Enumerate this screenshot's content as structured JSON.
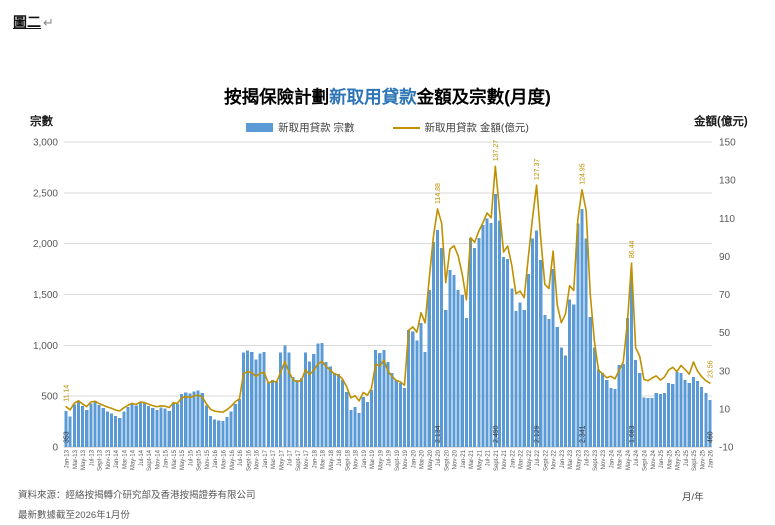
{
  "figure": {
    "label": "圖二",
    "paragraph_mark": "↵"
  },
  "title": {
    "prefix": "按揭保險計劃",
    "highlight": "新取用貸款",
    "suffix": "金額及宗數(月度)",
    "highlight_color": "#2E75B6"
  },
  "legend": [
    {
      "label": "新取用貸款 宗數",
      "type": "bar",
      "color": "#5B9BD5"
    },
    {
      "label": "新取用貸款 金額(億元)",
      "type": "line",
      "color": "#BF9000"
    }
  ],
  "axes": {
    "left_title": "宗數",
    "right_title": "金額(億元)",
    "x_title": "月/年",
    "left_tick_labels": [
      "0",
      "500",
      "1,000",
      "1,500",
      "2,000",
      "2,500",
      "3,000"
    ],
    "right_tick_labels": [
      "-10",
      "10",
      "30",
      "50",
      "70",
      "90",
      "110",
      "130",
      "150"
    ]
  },
  "source": {
    "line1": "資料來源：經絡按揭轉介研究部及香港按揭證券有限公司",
    "line2": "最新數據截至2026年1月份"
  },
  "chart_data": {
    "type": "bar+line",
    "title": "按揭保險計劃新取用貸款金額及宗數(月度)",
    "x_range": "Jan-13 to Jan-26 (monthly, 157 points)",
    "grid": true,
    "legend_position": "top",
    "left_axis": {
      "min": 0,
      "max": 3000,
      "step": 500
    },
    "right_axis": {
      "min": -10,
      "max": 150,
      "step": 20
    },
    "x_tick_labels": [
      "Jan-13",
      "Mar-13",
      "May-13",
      "Jul-13",
      "Sept-13",
      "Nov-13",
      "Jan-14",
      "Mar-14",
      "May-14",
      "Jul-14",
      "Sept-14",
      "Nov-14",
      "Jan-15",
      "Mar-15",
      "May-15",
      "Jul-15",
      "Sept-15",
      "Nov-15",
      "Jan-16",
      "Mar-16",
      "May-16",
      "Jul-16",
      "Sept-16",
      "Nov-16",
      "Jan-17",
      "Mar-17",
      "May-17",
      "Jul-17",
      "Sept-17",
      "Nov-17",
      "Jan-18",
      "Mar-18",
      "May-18",
      "Jul-18",
      "Sept-18",
      "Nov-18",
      "Jan-19",
      "Mar-19",
      "May-19",
      "Jul-19",
      "Sept-19",
      "Nov-19",
      "Jan-20",
      "Mar-20",
      "May-20",
      "Jul-20",
      "Sept-20",
      "Nov-20",
      "Jan-21",
      "Mar-21",
      "May-21",
      "Jul-21",
      "Sept-21",
      "Nov-21",
      "Jan-22",
      "Mar-22",
      "May-22",
      "Jul-22",
      "Sept-22",
      "Nov-22",
      "Jan-23",
      "Mar-23",
      "May-23",
      "Jul-23",
      "Sept-23",
      "Nov-23",
      "Jan-24",
      "Mar-24",
      "May-24",
      "Jul-24",
      "Sept-24",
      "Nov-24",
      "Jan-25",
      "Mar-25",
      "May-25",
      "Jul-25",
      "Sept-25",
      "Nov-25",
      "Jan-26"
    ],
    "series": [
      {
        "name": "新取用貸款 宗數",
        "type": "bar",
        "axis": "left",
        "color": "#5B9BD5",
        "values": [
          353,
          300,
          420,
          455,
          405,
          365,
          430,
          450,
          415,
          385,
          350,
          330,
          305,
          285,
          350,
          395,
          430,
          410,
          445,
          435,
          405,
          385,
          365,
          390,
          380,
          355,
          440,
          425,
          520,
          535,
          525,
          545,
          555,
          530,
          410,
          305,
          270,
          260,
          255,
          295,
          350,
          425,
          470,
          930,
          950,
          935,
          860,
          920,
          935,
          630,
          660,
          645,
          930,
          1000,
          930,
          690,
          660,
          675,
          930,
          840,
          915,
          1020,
          1025,
          835,
          790,
          730,
          720,
          660,
          540,
          365,
          395,
          335,
          490,
          445,
          560,
          955,
          925,
          955,
          835,
          730,
          660,
          630,
          580,
          1150,
          1135,
          1050,
          1220,
          935,
          1545,
          2015,
          2134,
          1955,
          1350,
          1740,
          1690,
          1545,
          1495,
          1270,
          2055,
          1955,
          2055,
          2185,
          2250,
          2205,
          2490,
          2230,
          1870,
          1850,
          1560,
          1340,
          1420,
          1350,
          1700,
          2050,
          2129,
          1840,
          1300,
          1260,
          1750,
          1180,
          980,
          900,
          1450,
          1400,
          2200,
          2341,
          2050,
          1280,
          980,
          760,
          730,
          660,
          580,
          570,
          805,
          815,
          1270,
          1683,
          855,
          730,
          485,
          480,
          480,
          530,
          520,
          530,
          630,
          620,
          740,
          730,
          660,
          630,
          690,
          650,
          590,
          530,
          460
        ]
      },
      {
        "name": "新取用貸款 金額(億元)",
        "type": "line",
        "axis": "right",
        "color": "#BF9000",
        "values": [
          11.14,
          9.5,
          13.0,
          14.2,
          12.6,
          11.2,
          13.6,
          14.0,
          12.8,
          11.9,
          11.0,
          10.3,
          9.4,
          8.9,
          10.6,
          11.9,
          12.9,
          12.3,
          13.6,
          13.3,
          12.4,
          11.7,
          11.1,
          11.6,
          11.4,
          10.7,
          13.2,
          12.9,
          15.8,
          16.4,
          16.0,
          16.8,
          17.2,
          16.3,
          12.6,
          9.8,
          8.8,
          8.5,
          8.3,
          9.6,
          11.4,
          13.8,
          15.2,
          28.5,
          29.5,
          29.0,
          27.0,
          28.6,
          29.2,
          23.5,
          24.6,
          24.1,
          29.3,
          34.8,
          29.4,
          25.2,
          24.3,
          24.8,
          30.5,
          28.0,
          30.2,
          33.5,
          34.9,
          32.2,
          30.4,
          28.3,
          27.8,
          25.6,
          21.5,
          15.8,
          16.9,
          14.2,
          18.6,
          17.2,
          20.8,
          33.4,
          32.5,
          35.6,
          29.8,
          27.0,
          24.9,
          24.2,
          22.4,
          51.2,
          53.0,
          50.2,
          60.4,
          55.1,
          78.5,
          100.3,
          114.88,
          107.4,
          76.2,
          93.8,
          95.6,
          90.3,
          80.5,
          67.2,
          99.8,
          97.4,
          103.2,
          107.6,
          112.8,
          110.2,
          137.27,
          114.6,
          92.3,
          95.4,
          85.2,
          70.4,
          71.8,
          68.3,
          89.6,
          109.8,
          127.37,
          99.6,
          75.3,
          73.1,
          92.8,
          64.5,
          55.2,
          59.8,
          74.6,
          72.1,
          109.5,
          124.95,
          114.2,
          70.3,
          45.6,
          30.2,
          28.4,
          26.3,
          27.1,
          25.8,
          30.2,
          34.6,
          55.3,
          86.44,
          42.1,
          37.5,
          25.4,
          24.8,
          26.2,
          27.3,
          25.1,
          26.8,
          30.4,
          31.8,
          29.6,
          32.8,
          30.6,
          28.2,
          34.6,
          29.8,
          26.9,
          24.8,
          23.56
        ]
      }
    ],
    "annotations": {
      "bar_labels": [
        {
          "index": 0,
          "text": "353"
        },
        {
          "index": 90,
          "text": "2,134"
        },
        {
          "index": 104,
          "text": "2,490"
        },
        {
          "index": 114,
          "text": "2,129"
        },
        {
          "index": 125,
          "text": "2,341"
        },
        {
          "index": 137,
          "text": "1,683"
        },
        {
          "index": 156,
          "text": "460"
        }
      ],
      "line_labels": [
        {
          "index": 0,
          "text": "11.14"
        },
        {
          "index": 90,
          "text": "114.88"
        },
        {
          "index": 104,
          "text": "137.27"
        },
        {
          "index": 114,
          "text": "127.37"
        },
        {
          "index": 125,
          "text": "124.95"
        },
        {
          "index": 137,
          "text": "86.44"
        },
        {
          "index": 156,
          "text": "23.56"
        }
      ]
    }
  }
}
